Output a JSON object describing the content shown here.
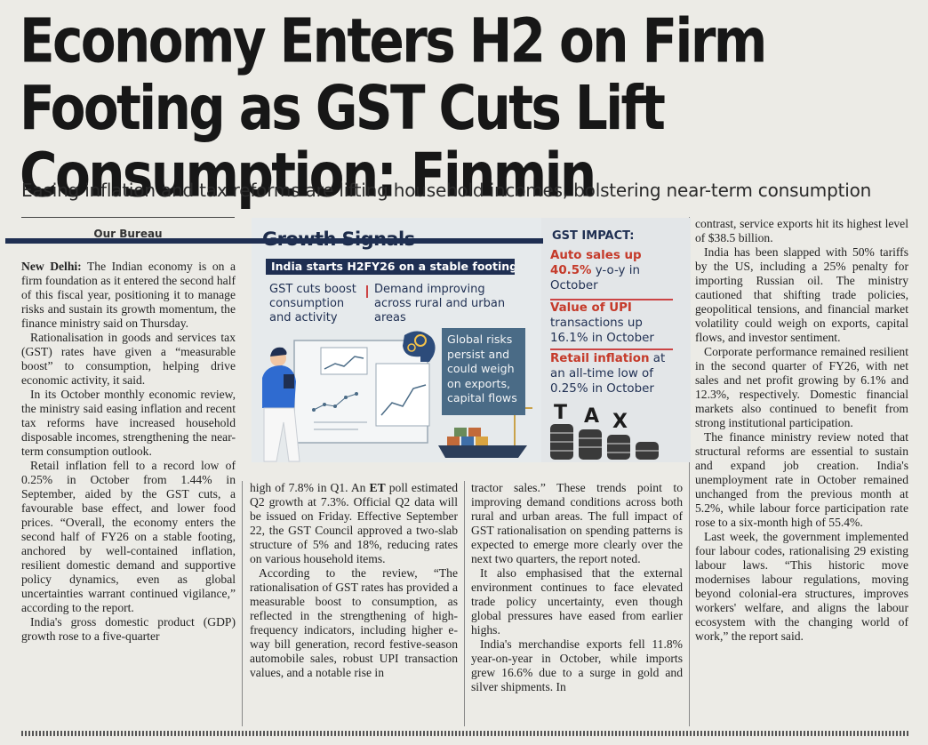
{
  "article": {
    "headline": "Economy Enters H2 on Firm Footing as GST Cuts Lift Consumption: Finmin",
    "subhead": "Easing inflation and tax reforms are lifting household incomes, bolstering near-term consumption",
    "byline": "Our Bureau",
    "dateline": "New Delhi:",
    "col1": {
      "p1": "The Indian economy is on a firm foundation as it entered the second half of this fiscal year, positioning it to manage risks and sustain its growth momentum, the finance ministry said on Thursday.",
      "p2": "Rationalisation in goods and services tax (GST) rates have given a “measurable boost” to consumption, helping drive economic activity, it said.",
      "p3": "In its October monthly economic review, the ministry said easing inflation and recent tax reforms have increased household disposable incomes, strengthening the near-term consumption outlook.",
      "p4": "Retail inflation fell to a record low of 0.25% in October from 1.44% in September, aided by the GST cuts, a favourable base effect, and lower food prices. “Overall, the economy enters the second half of FY26 on a stable footing, anchored by well-contained inflation, resilient domestic demand and supportive policy dynamics, even as global uncertainties warrant continued vigilance,” according to the report.",
      "p5": "India's gross domestic product (GDP) growth rose to a five-quarter"
    },
    "col2": {
      "p1a": "high of 7.8% in Q1. An",
      "et": "ET",
      "p1b": "poll estimated Q2 growth at 7.3%. Official Q2 data will be issued on Friday. Effective September 22, the GST Council approved a two-slab structure of 5% and 18%, reducing rates on various household items.",
      "p2": "According to the review, “The rationalisation of GST rates has provided a measurable boost to consumption, as reflected in the strengthening of high-frequency indicators, including higher e-way bill generation, record festive-season automobile sales, robust UPI transaction values, and a notable rise in"
    },
    "col3": {
      "p1": "tractor sales.” These trends point to improving demand conditions across both rural and urban areas. The full impact of GST rationalisation on spending patterns is expected to emerge more clearly over the next two quarters, the report noted.",
      "p2": "It also emphasised that the external environment continues to face elevated trade policy uncertainty, even though global pressures have eased from earlier highs.",
      "p3": "India's merchandise exports fell 11.8% year-on-year in October, while imports grew 16.6% due to a surge in gold and silver shipments. In"
    },
    "col4": {
      "p1": "contrast, service exports hit its highest level of $38.5 billion.",
      "p2": "India has been slapped with 50% tariffs by the US, including a 25% penalty for importing Russian oil. The ministry cautioned that shifting trade policies, geopolitical tensions, and financial market volatility could weigh on exports, capital flows, and investor sentiment.",
      "p3": "Corporate performance remained resilient in the second quarter of FY26, with net sales and net profit growing by 6.1% and 12.3%, respectively. Domestic financial markets also continued to benefit from strong institutional participation.",
      "p4": "The finance ministry review noted that structural reforms are essential to sustain and expand job creation. India's unemployment rate in October remained unchanged from the previous month at 5.2%, while labour force participation rate rose to a six-month high of 55.4%.",
      "p5": "Last week, the government implemented four labour codes, rationalising 29 existing labour laws. “This historic move modernises labour regulations, moving beyond colonial-era structures, improves workers' welfare, and aligns the labour ecosystem with the changing world of work,” the report said."
    }
  },
  "infographic": {
    "title": "Growth Signals",
    "banner": "India starts H2FY26 on a stable footing",
    "left_point": "GST cuts boost consumption and activity",
    "right_point": "Demand improving across rural and urban areas",
    "risk_box": "Global risks persist and could weigh on exports, capital flows",
    "gst_title": "GST IMPACT:",
    "gst_items": [
      {
        "highlight": "Auto sales up 40.5%",
        "rest": "y-o-y in October"
      },
      {
        "highlight": "Value of UPI",
        "rest": "transactions up 16.1% in October"
      },
      {
        "highlight": "Retail inflation",
        "rest": "at an all-time low of 0.25% in October"
      }
    ],
    "tax_letters": [
      "T",
      "A",
      "X"
    ]
  },
  "colors": {
    "navy": "#1f2f52",
    "accent_red": "#c53a2a",
    "risk_box": "#4a6b86",
    "paper": "#ecebe6"
  }
}
